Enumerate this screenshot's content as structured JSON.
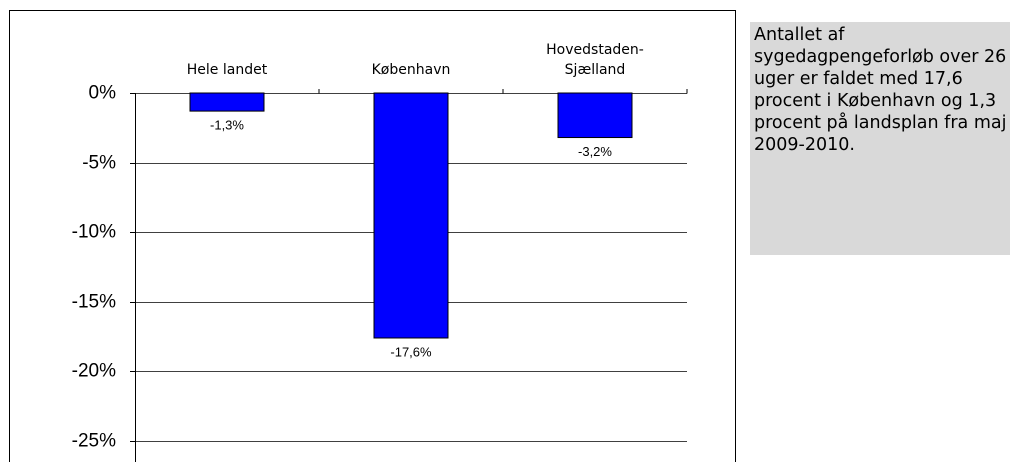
{
  "chart_data": {
    "type": "bar",
    "categories": [
      "Hele landet",
      "København",
      "Hovedstaden-\nSjælland"
    ],
    "values": [
      -1.3,
      -17.6,
      -3.2
    ],
    "value_labels": [
      "-1,3%",
      "-17,6%",
      "-3,2%"
    ],
    "color": "#0000ff",
    "ylim": [
      -25,
      0
    ],
    "yticks": [
      {
        "value": 0,
        "label": "0%"
      },
      {
        "value": -5,
        "label": "-5%"
      },
      {
        "value": -10,
        "label": "-10%"
      },
      {
        "value": -15,
        "label": "-15%"
      },
      {
        "value": -20,
        "label": "-20%"
      },
      {
        "value": -25,
        "label": "-25%"
      }
    ],
    "grid": true
  },
  "note": "Antallet af sygedagpengeforløb over 26 uger er faldet med 17,6 procent i København og 1,3 procent på landsplan fra maj 2009-2010."
}
